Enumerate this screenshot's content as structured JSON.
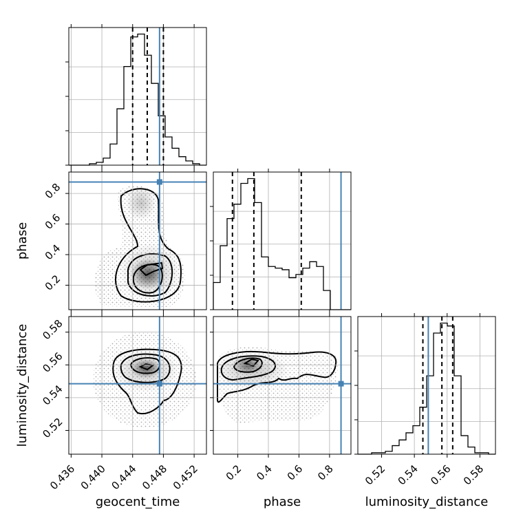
{
  "chart_data": {
    "type": "corner",
    "parameters": [
      "geocent_time",
      "phase",
      "luminosity_distance"
    ],
    "truths": {
      "geocent_time": 0.4475,
      "phase": 0.875,
      "luminosity_distance": 0.5485
    },
    "ranges": {
      "geocent_time": [
        0.4357,
        0.4536
      ],
      "phase": [
        0.04,
        0.94
      ],
      "luminosity_distance": [
        0.5055,
        0.5895
      ]
    },
    "ticks": {
      "geocent_time": [
        "0.436",
        "0.440",
        "0.444",
        "0.448",
        "0.452"
      ],
      "phase": [
        "0.2",
        "0.4",
        "0.6",
        "0.8"
      ],
      "luminosity_distance": [
        "0.52",
        "0.54",
        "0.56",
        "0.58"
      ]
    },
    "quantiles": {
      "geocent_time": [
        0.444,
        0.4459,
        0.448
      ],
      "phase": [
        0.165,
        0.305,
        0.615
      ],
      "luminosity_distance": [
        0.5452,
        0.5568,
        0.5634
      ]
    },
    "histograms": {
      "geocent_time": {
        "edges_from": 0.4357,
        "edges_to": 0.4536,
        "counts": [
          0,
          0,
          0,
          1,
          2,
          5,
          15,
          40,
          70,
          91,
          93,
          78,
          58,
          35,
          20,
          12,
          6,
          3,
          1,
          0
        ]
      },
      "phase": {
        "edges_from": 0.04,
        "edges_to": 0.94,
        "counts": [
          17,
          40,
          57,
          66,
          79,
          82,
          67,
          33,
          27,
          26,
          25,
          20,
          22,
          26,
          30,
          27,
          12,
          0,
          0,
          0
        ]
      },
      "luminosity_distance": {
        "edges_from": 0.5055,
        "edges_to": 0.5895,
        "counts": [
          0,
          0,
          1,
          1,
          2,
          6,
          10,
          15,
          20,
          33,
          55,
          85,
          92,
          90,
          55,
          13,
          5,
          1,
          1,
          0
        ]
      }
    },
    "grid": true,
    "ylabel_geocent_hist": ""
  }
}
